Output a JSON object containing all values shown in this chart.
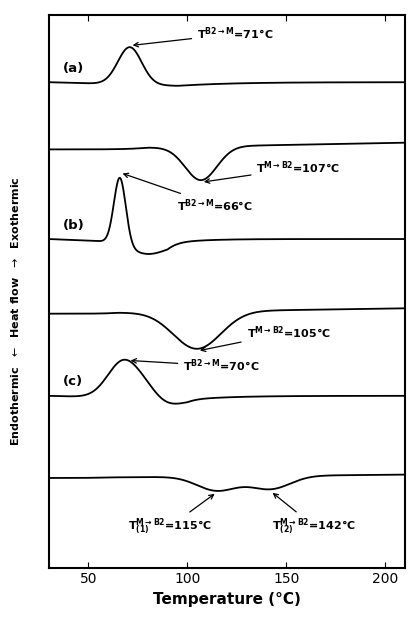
{
  "xlabel": "Temperature (°C)",
  "xlim": [
    30,
    210
  ],
  "xticks": [
    50,
    100,
    150,
    200
  ],
  "background_color": "#ffffff",
  "line_color": "#000000",
  "lw": 1.3,
  "panel_labels": [
    "(a)",
    "(b)",
    "(c)"
  ],
  "offsets": {
    "a_heat": 10.0,
    "a_cool": 8.2,
    "b_heat": 5.8,
    "b_cool": 3.8,
    "c_heat": 1.6,
    "c_cool": -0.6
  },
  "ylim": [
    -3.0,
    11.8
  ]
}
